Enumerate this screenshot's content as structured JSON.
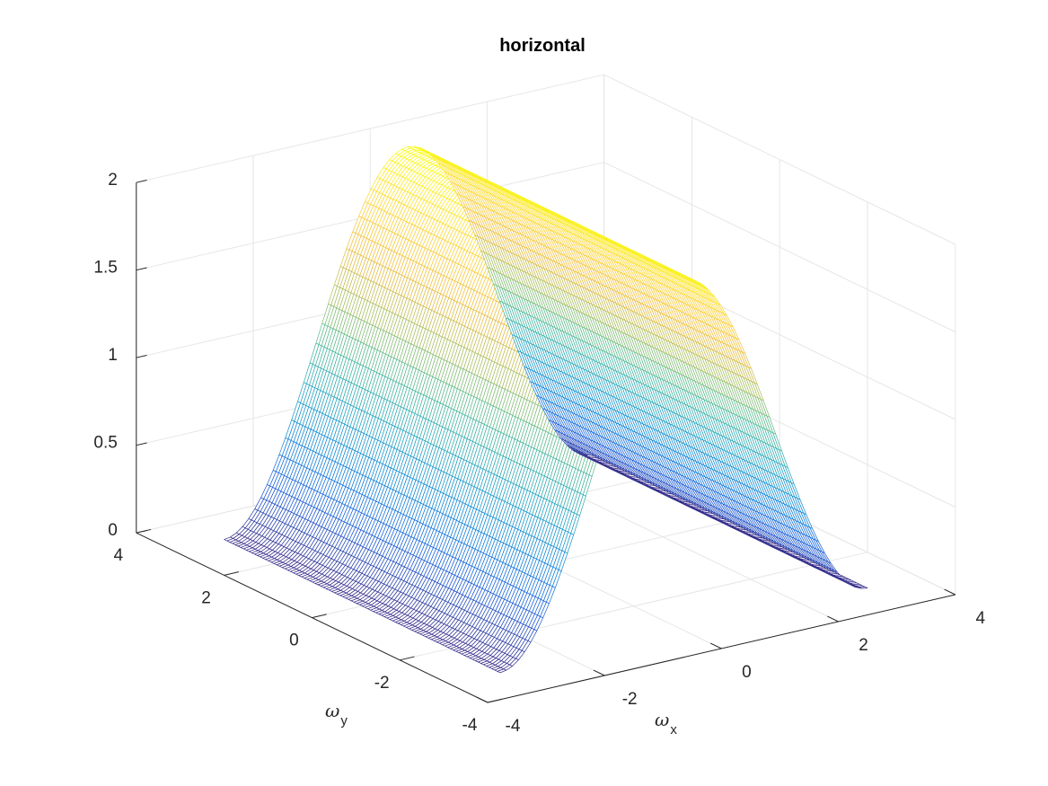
{
  "chart_data": {
    "type": "surface",
    "title": "horizontal",
    "xlabel": "ω",
    "xlabel_subscript": "x",
    "ylabel": "ω",
    "ylabel_subscript": "y",
    "zlabel": "",
    "xlim": [
      -4,
      4
    ],
    "ylim": [
      -4,
      4
    ],
    "zlim": [
      0,
      2
    ],
    "x_ticks": [
      "-4",
      "-2",
      "0",
      "2",
      "4"
    ],
    "y_ticks": [
      "-4",
      "-2",
      "0",
      "2",
      "4"
    ],
    "z_ticks": [
      "0",
      "0.5",
      "1",
      "1.5",
      "2"
    ],
    "function": "z = 2*cos(omega_x/2)^2 = 1 + cos(omega_x); constant along omega_y",
    "x_domain": [
      -3.1416,
      3.1416
    ],
    "y_domain": [
      -3.1416,
      3.1416
    ],
    "samples": [
      {
        "x": -3.1416,
        "z": 0.0
      },
      {
        "x": -1.5708,
        "z": 1.0
      },
      {
        "x": 0.0,
        "z": 2.0
      },
      {
        "x": 1.5708,
        "z": 1.0
      },
      {
        "x": 3.1416,
        "z": 0.0
      }
    ],
    "colormap": "parula",
    "grid": true
  }
}
